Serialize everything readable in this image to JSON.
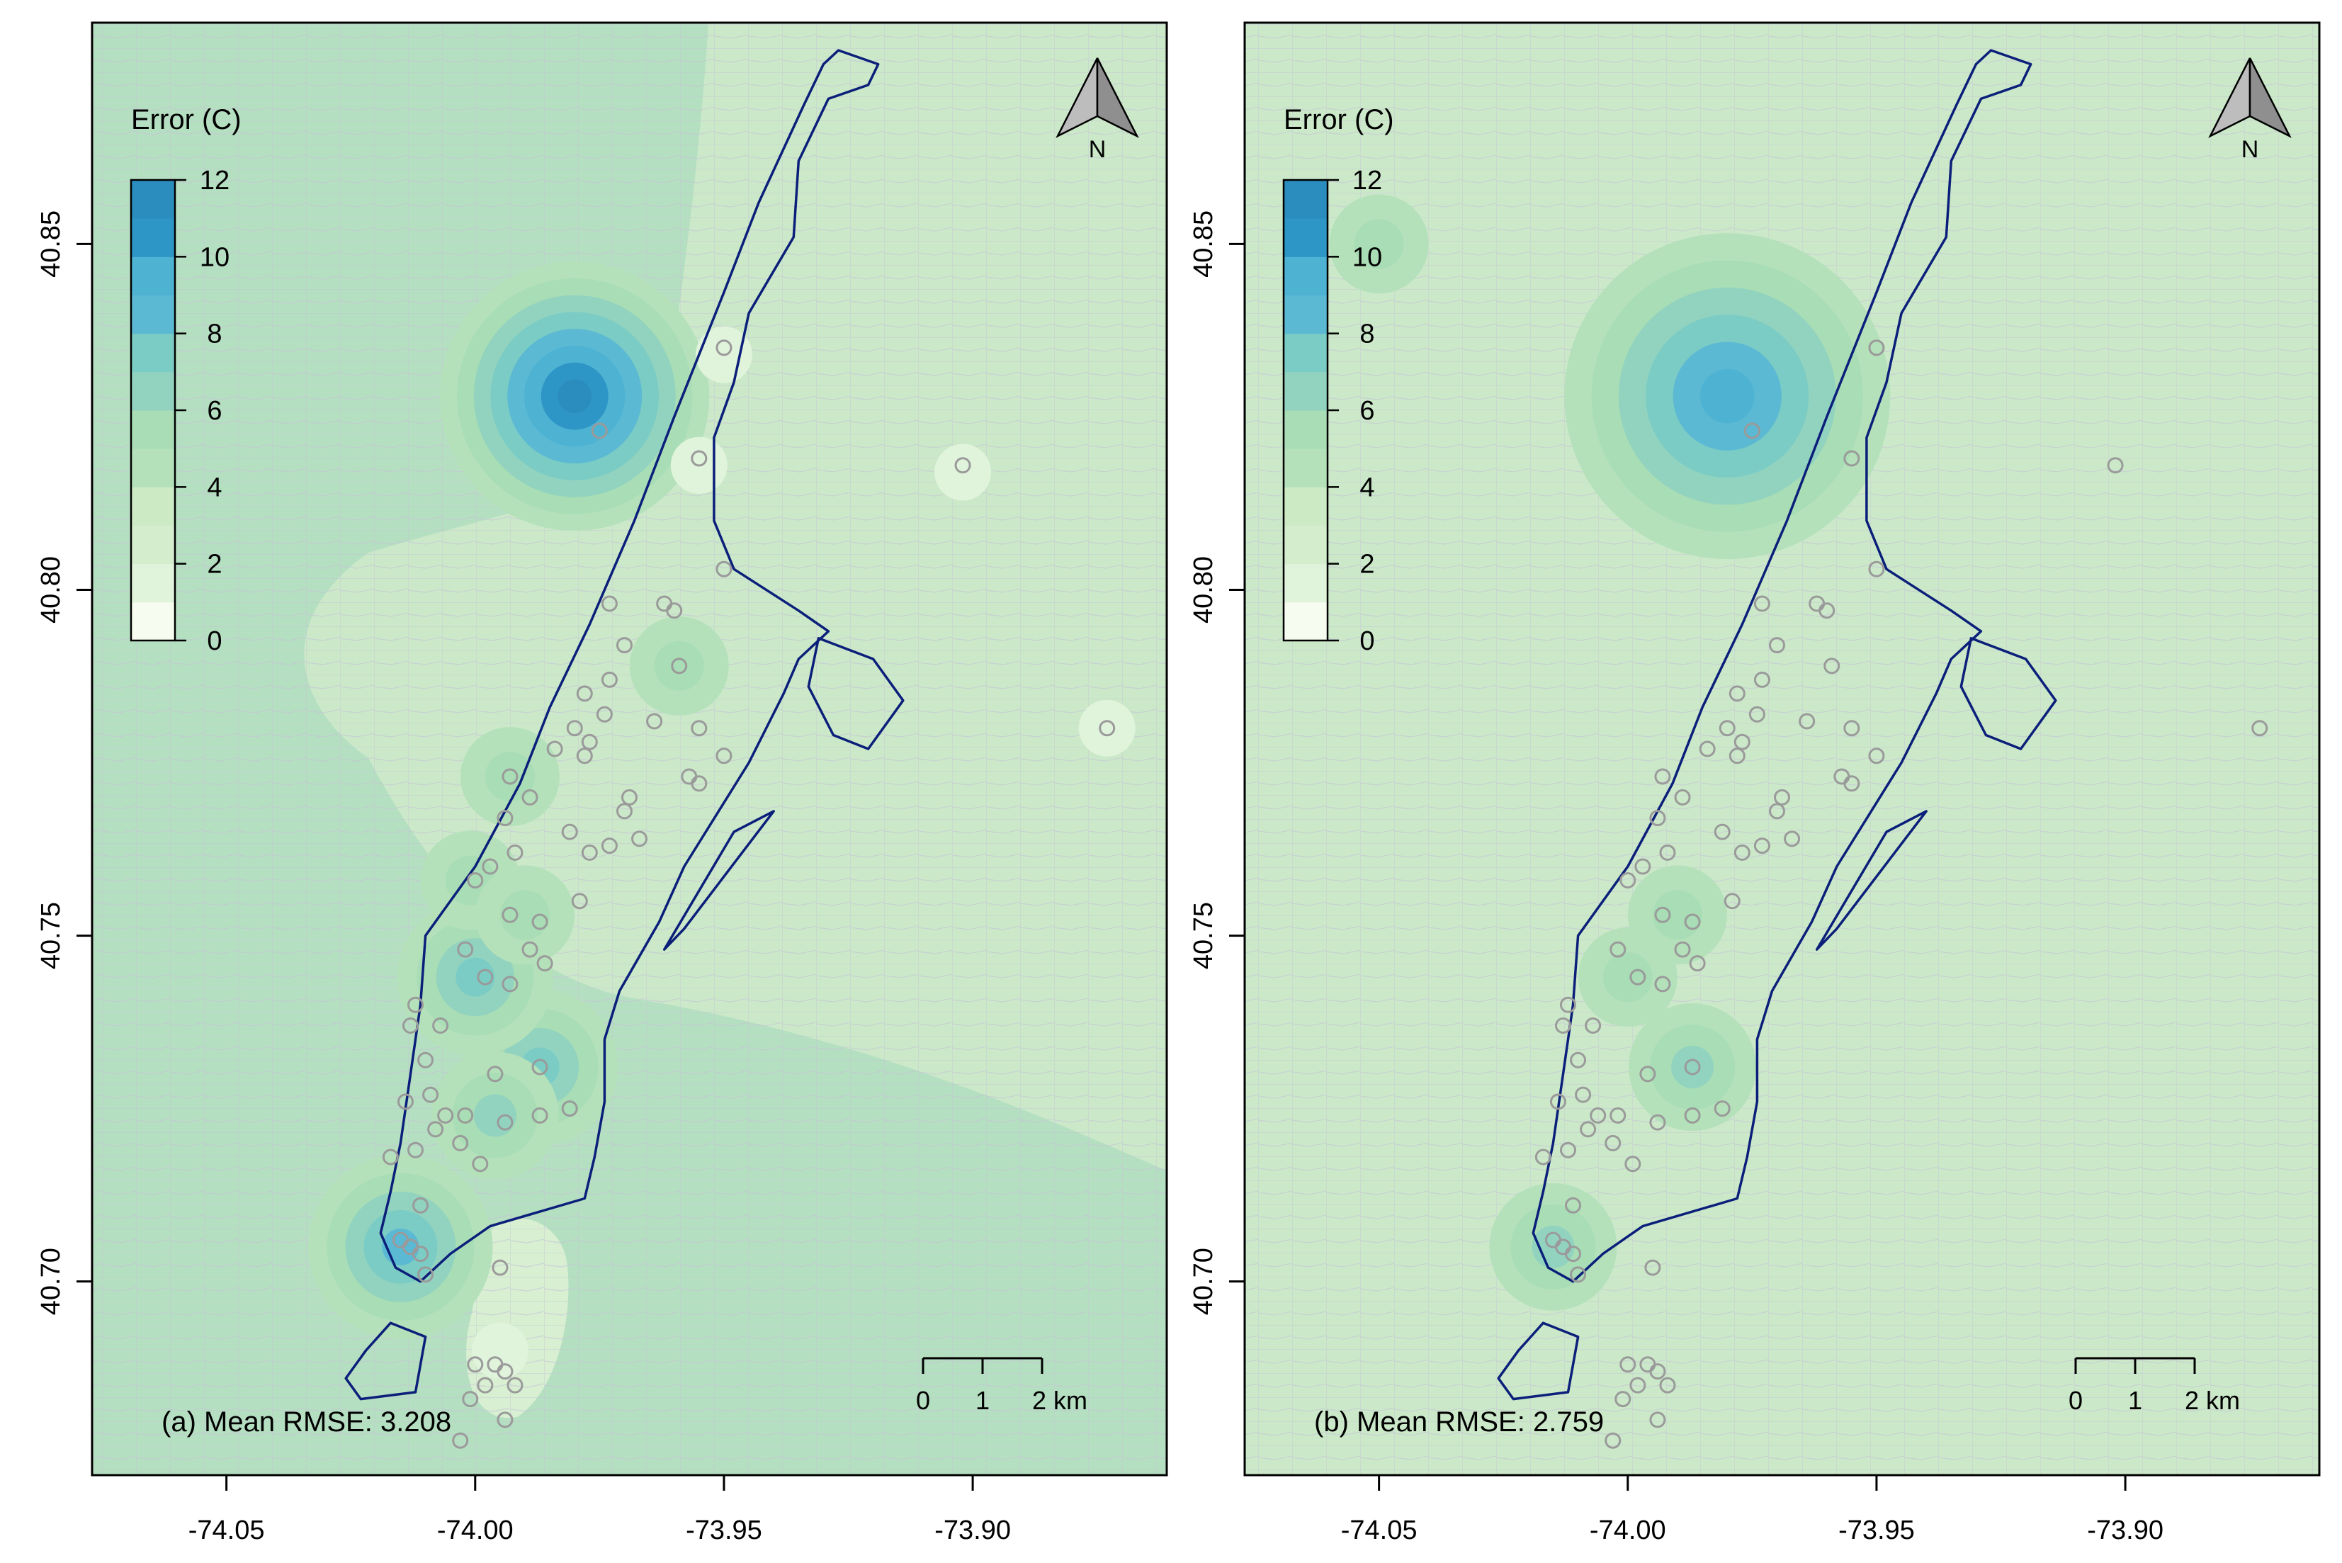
{
  "figure": {
    "panels": [
      {
        "id": "a",
        "rmse_label": "(a) Mean RMSE: 3.208",
        "background_color": "#b5dfc1",
        "hotspots": [
          {
            "lon": -73.98,
            "lat": 40.828,
            "level": 11
          },
          {
            "lon": -73.987,
            "lat": 40.731,
            "level": 7
          },
          {
            "lon": -74.0,
            "lat": 40.744,
            "level": 7
          },
          {
            "lon": -74.015,
            "lat": 40.705,
            "level": 8
          },
          {
            "lon": -73.996,
            "lat": 40.724,
            "level": 6
          },
          {
            "lon": -73.993,
            "lat": 40.773,
            "level": 5
          },
          {
            "lon": -74.001,
            "lat": 40.758,
            "level": 5
          },
          {
            "lon": -73.99,
            "lat": 40.753,
            "level": 5
          },
          {
            "lon": -73.959,
            "lat": 40.789,
            "level": 5
          }
        ],
        "cool_spots": [
          {
            "lon": -73.95,
            "lat": 40.834
          },
          {
            "lon": -73.955,
            "lat": 40.818
          },
          {
            "lon": -73.902,
            "lat": 40.817
          },
          {
            "lon": -73.873,
            "lat": 40.78
          },
          {
            "lon": -73.995,
            "lat": 40.69
          }
        ]
      },
      {
        "id": "b",
        "rmse_label": "(b) Mean RMSE: 2.759",
        "background_color": "#cbe9c9",
        "hotspots": [
          {
            "lon": -73.98,
            "lat": 40.828,
            "level": 9
          },
          {
            "lon": -73.987,
            "lat": 40.731,
            "level": 6
          },
          {
            "lon": -74.015,
            "lat": 40.705,
            "level": 6
          },
          {
            "lon": -74.0,
            "lat": 40.744,
            "level": 5
          },
          {
            "lon": -74.05,
            "lat": 40.85,
            "level": 5
          },
          {
            "lon": -73.99,
            "lat": 40.753,
            "level": 5
          }
        ],
        "cool_spots": []
      }
    ],
    "legend": {
      "title": "Error (C)",
      "ticks": [
        "0",
        "2",
        "4",
        "6",
        "8",
        "10",
        "12"
      ],
      "breaks": [
        0,
        1,
        2,
        3,
        4,
        5,
        6,
        7,
        8,
        9,
        10,
        11,
        12
      ],
      "colors": [
        "#f7fcf0",
        "#e0f3db",
        "#d3edcd",
        "#ccebc5",
        "#b4e1ba",
        "#a8ddb5",
        "#92d3c0",
        "#7bccc4",
        "#5cb9d3",
        "#4eb3d3",
        "#2e96c6",
        "#2b8cbe",
        "#0868ac",
        "#084081"
      ]
    },
    "x_ticks": [
      {
        "value": -74.05,
        "label": "-74.05"
      },
      {
        "value": -74.0,
        "label": "-74.00"
      },
      {
        "value": -73.95,
        "label": "-73.95"
      },
      {
        "value": -73.9,
        "label": "-73.90"
      }
    ],
    "y_ticks": [
      {
        "value": 40.7,
        "label": "40.70"
      },
      {
        "value": 40.75,
        "label": "40.75"
      },
      {
        "value": 40.8,
        "label": "40.80"
      },
      {
        "value": 40.85,
        "label": "40.85"
      }
    ],
    "extent": {
      "lon_min": -74.077,
      "lon_max": -73.861,
      "lat_min": 40.672,
      "lat_max": 40.882
    },
    "north_arrow_label": "N",
    "scale_bar": {
      "labels": [
        "0",
        "1",
        "2 km"
      ]
    },
    "stations": [
      {
        "lon": -73.95,
        "lat": 40.835
      },
      {
        "lon": -73.975,
        "lat": 40.823
      },
      {
        "lon": -73.955,
        "lat": 40.819
      },
      {
        "lon": -73.902,
        "lat": 40.818
      },
      {
        "lon": -73.95,
        "lat": 40.803
      },
      {
        "lon": -73.973,
        "lat": 40.798
      },
      {
        "lon": -73.962,
        "lat": 40.798
      },
      {
        "lon": -73.96,
        "lat": 40.797
      },
      {
        "lon": -73.97,
        "lat": 40.792
      },
      {
        "lon": -73.959,
        "lat": 40.789
      },
      {
        "lon": -73.973,
        "lat": 40.787
      },
      {
        "lon": -73.978,
        "lat": 40.785
      },
      {
        "lon": -73.974,
        "lat": 40.782
      },
      {
        "lon": -73.964,
        "lat": 40.781
      },
      {
        "lon": -73.955,
        "lat": 40.78
      },
      {
        "lon": -73.98,
        "lat": 40.78
      },
      {
        "lon": -73.977,
        "lat": 40.778
      },
      {
        "lon": -73.984,
        "lat": 40.777
      },
      {
        "lon": -73.978,
        "lat": 40.776
      },
      {
        "lon": -73.95,
        "lat": 40.776
      },
      {
        "lon": -73.873,
        "lat": 40.78
      },
      {
        "lon": -73.993,
        "lat": 40.773
      },
      {
        "lon": -73.957,
        "lat": 40.773
      },
      {
        "lon": -73.955,
        "lat": 40.772
      },
      {
        "lon": -73.989,
        "lat": 40.77
      },
      {
        "lon": -73.969,
        "lat": 40.77
      },
      {
        "lon": -73.97,
        "lat": 40.768
      },
      {
        "lon": -73.994,
        "lat": 40.767
      },
      {
        "lon": -73.981,
        "lat": 40.765
      },
      {
        "lon": -73.967,
        "lat": 40.764
      },
      {
        "lon": -73.973,
        "lat": 40.763
      },
      {
        "lon": -73.977,
        "lat": 40.762
      },
      {
        "lon": -73.992,
        "lat": 40.762
      },
      {
        "lon": -73.997,
        "lat": 40.76
      },
      {
        "lon": -74.0,
        "lat": 40.758
      },
      {
        "lon": -73.979,
        "lat": 40.755
      },
      {
        "lon": -73.993,
        "lat": 40.753
      },
      {
        "lon": -73.987,
        "lat": 40.752
      },
      {
        "lon": -73.989,
        "lat": 40.748
      },
      {
        "lon": -74.002,
        "lat": 40.748
      },
      {
        "lon": -73.986,
        "lat": 40.746
      },
      {
        "lon": -73.998,
        "lat": 40.744
      },
      {
        "lon": -73.993,
        "lat": 40.743
      },
      {
        "lon": -74.012,
        "lat": 40.74
      },
      {
        "lon": -74.013,
        "lat": 40.737
      },
      {
        "lon": -74.007,
        "lat": 40.737
      },
      {
        "lon": -74.01,
        "lat": 40.732
      },
      {
        "lon": -73.987,
        "lat": 40.731
      },
      {
        "lon": -73.996,
        "lat": 40.73
      },
      {
        "lon": -74.009,
        "lat": 40.727
      },
      {
        "lon": -74.014,
        "lat": 40.726
      },
      {
        "lon": -74.006,
        "lat": 40.724
      },
      {
        "lon": -74.002,
        "lat": 40.724
      },
      {
        "lon": -73.994,
        "lat": 40.723
      },
      {
        "lon": -73.987,
        "lat": 40.724
      },
      {
        "lon": -73.981,
        "lat": 40.725
      },
      {
        "lon": -74.008,
        "lat": 40.722
      },
      {
        "lon": -74.003,
        "lat": 40.72
      },
      {
        "lon": -74.012,
        "lat": 40.719
      },
      {
        "lon": -73.999,
        "lat": 40.717
      },
      {
        "lon": -74.017,
        "lat": 40.718
      },
      {
        "lon": -74.011,
        "lat": 40.711
      },
      {
        "lon": -74.015,
        "lat": 40.706
      },
      {
        "lon": -74.013,
        "lat": 40.705
      },
      {
        "lon": -74.011,
        "lat": 40.704
      },
      {
        "lon": -74.01,
        "lat": 40.701
      },
      {
        "lon": -73.995,
        "lat": 40.702
      },
      {
        "lon": -74.0,
        "lat": 40.688
      },
      {
        "lon": -73.996,
        "lat": 40.688
      },
      {
        "lon": -73.994,
        "lat": 40.687
      },
      {
        "lon": -73.992,
        "lat": 40.685
      },
      {
        "lon": -73.998,
        "lat": 40.685
      },
      {
        "lon": -74.001,
        "lat": 40.683
      },
      {
        "lon": -73.994,
        "lat": 40.68
      },
      {
        "lon": -74.003,
        "lat": 40.677
      }
    ],
    "manhattan_outline": [
      [
        -73.927,
        40.878
      ],
      [
        -73.919,
        40.876
      ],
      [
        -73.921,
        40.873
      ],
      [
        -73.929,
        40.871
      ],
      [
        -73.935,
        40.862
      ],
      [
        -73.936,
        40.851
      ],
      [
        -73.945,
        40.84
      ],
      [
        -73.948,
        40.83
      ],
      [
        -73.952,
        40.822
      ],
      [
        -73.952,
        40.81
      ],
      [
        -73.948,
        40.803
      ],
      [
        -73.935,
        40.797
      ],
      [
        -73.929,
        40.794
      ],
      [
        -73.935,
        40.79
      ],
      [
        -73.938,
        40.785
      ],
      [
        -73.945,
        40.775
      ],
      [
        -73.958,
        40.76
      ],
      [
        -73.963,
        40.752
      ],
      [
        -73.971,
        40.742
      ],
      [
        -73.974,
        40.735
      ],
      [
        -73.974,
        40.726
      ],
      [
        -73.976,
        40.718
      ],
      [
        -73.978,
        40.712
      ],
      [
        -73.997,
        40.708
      ],
      [
        -74.005,
        40.704
      ],
      [
        -74.011,
        40.7
      ],
      [
        -74.016,
        40.702
      ],
      [
        -74.019,
        40.707
      ],
      [
        -74.017,
        40.713
      ],
      [
        -74.015,
        40.72
      ],
      [
        -74.013,
        40.73
      ],
      [
        -74.011,
        40.74
      ],
      [
        -74.01,
        40.75
      ],
      [
        -74.0,
        40.76
      ],
      [
        -73.991,
        40.772
      ],
      [
        -73.985,
        40.783
      ],
      [
        -73.977,
        40.795
      ],
      [
        -73.968,
        40.81
      ],
      [
        -73.96,
        40.825
      ],
      [
        -73.95,
        40.843
      ],
      [
        -73.943,
        40.856
      ],
      [
        -73.934,
        40.87
      ],
      [
        -73.93,
        40.876
      ],
      [
        -73.927,
        40.878
      ]
    ],
    "roosevelt_island": [
      [
        -73.94,
        40.768
      ],
      [
        -73.958,
        40.751
      ],
      [
        -73.962,
        40.748
      ],
      [
        -73.948,
        40.765
      ],
      [
        -73.94,
        40.768
      ]
    ],
    "randalls_island": [
      [
        -73.931,
        40.793
      ],
      [
        -73.92,
        40.79
      ],
      [
        -73.914,
        40.784
      ],
      [
        -73.921,
        40.777
      ],
      [
        -73.928,
        40.779
      ],
      [
        -73.933,
        40.786
      ],
      [
        -73.931,
        40.793
      ]
    ],
    "governors_island": [
      [
        -74.022,
        40.69
      ],
      [
        -74.017,
        40.694
      ],
      [
        -74.01,
        40.692
      ],
      [
        -74.012,
        40.684
      ],
      [
        -74.023,
        40.683
      ],
      [
        -74.026,
        40.686
      ],
      [
        -74.022,
        40.69
      ]
    ]
  }
}
